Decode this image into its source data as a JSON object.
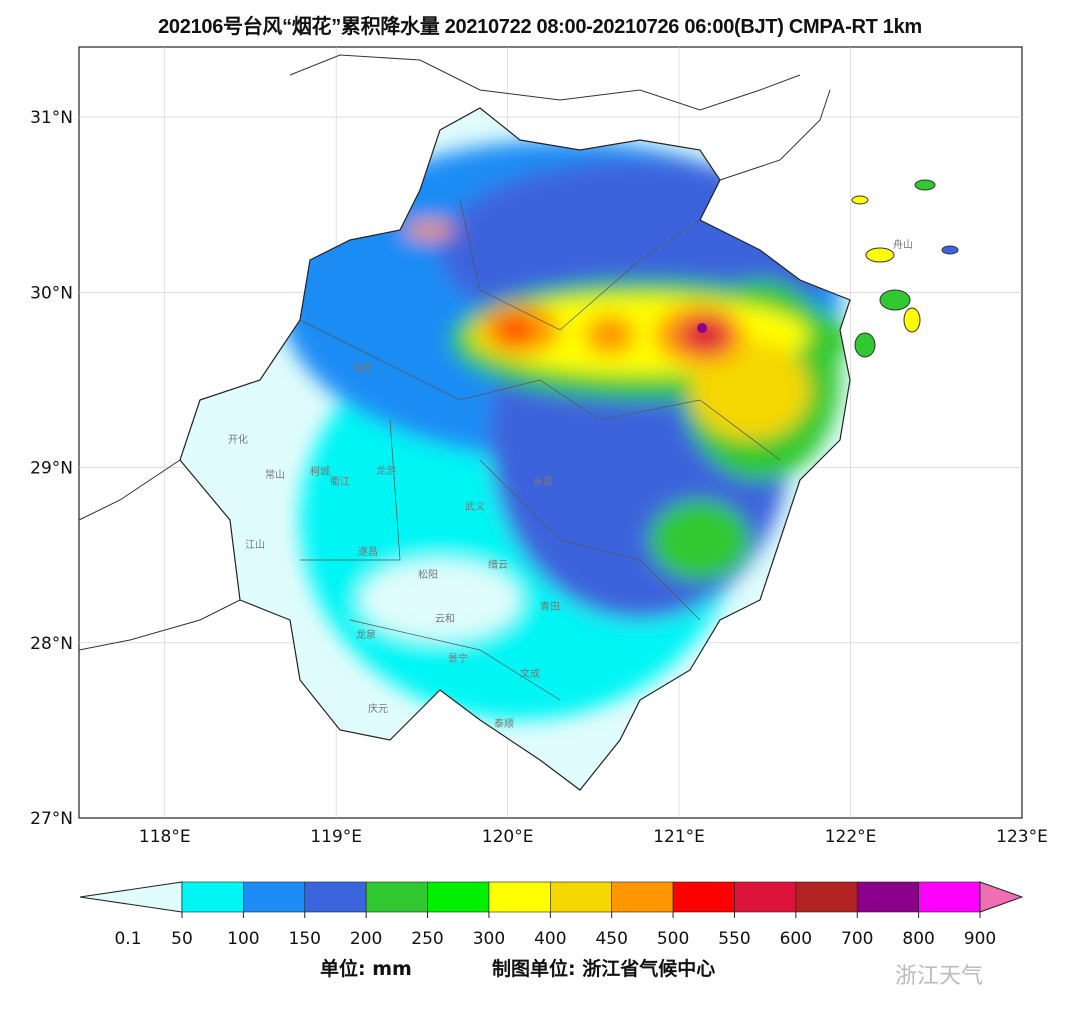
{
  "title": "202106号台风“烟花”累积降水量   20210722 08:00-20210726 06:00(BJT)   CMPA-RT 1km",
  "map": {
    "lon_range": [
      117.5,
      123
    ],
    "lat_range": [
      27,
      31.4
    ],
    "lon_ticks": [
      "118°E",
      "119°E",
      "120°E",
      "121°E",
      "122°E",
      "123°E"
    ],
    "lat_ticks": [
      "27°N",
      "28°N",
      "29°N",
      "30°N",
      "31°N"
    ],
    "cities": [
      "淳安",
      "开化",
      "常山",
      "柯城",
      "衢江",
      "龙游",
      "江山",
      "遂昌",
      "松阳",
      "龙泉",
      "庆元",
      "云和",
      "景宁",
      "青田",
      "文成",
      "泰顺",
      "永嘉",
      "缙云",
      "武义",
      "舟山"
    ]
  },
  "colorbar": {
    "labels": [
      "0.1",
      "50",
      "100",
      "150",
      "200",
      "250",
      "300",
      "400",
      "450",
      "500",
      "550",
      "600",
      "700",
      "800",
      "900"
    ],
    "colors": [
      "#e0fcfc",
      "#00f5f5",
      "#1e8cf5",
      "#3c64dc",
      "#32c832",
      "#00f000",
      "#ffff00",
      "#f5d700",
      "#ff9600",
      "#ff0000",
      "#dc143c",
      "#b22222",
      "#8b008b",
      "#ff00ff",
      "#f06eb4"
    ],
    "units": "单位: mm",
    "maker": "制图单位: 浙江省气候中心"
  },
  "watermark": "浙江天气"
}
